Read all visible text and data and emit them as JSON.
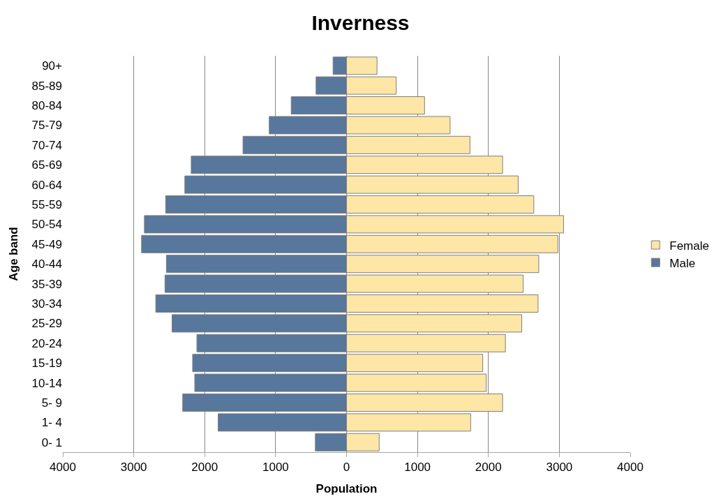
{
  "chart_data": {
    "type": "bar",
    "orientation": "horizontal",
    "title": "Inverness",
    "xlabel": "Population",
    "ylabel": "Age band",
    "categories": [
      "90+",
      "85-89",
      "80-84",
      "75-79",
      "70-74",
      "65-69",
      "60-64",
      "55-59",
      "50-54",
      "45-49",
      "40-44",
      "35-39",
      "30-34",
      "25-29",
      "20-24",
      "15-19",
      "10-14",
      "5- 9",
      "1- 4",
      "0- 1"
    ],
    "series": [
      {
        "name": "Female",
        "color": "#fde6a6",
        "values": [
          430,
          700,
          1100,
          1460,
          1740,
          2200,
          2420,
          2640,
          3060,
          2980,
          2710,
          2490,
          2700,
          2470,
          2240,
          1920,
          1970,
          2200,
          1750,
          460
        ]
      },
      {
        "name": "Male",
        "color": "#57779d",
        "values": [
          -190,
          -430,
          -780,
          -1090,
          -1460,
          -2190,
          -2280,
          -2550,
          -2850,
          -2890,
          -2540,
          -2560,
          -2690,
          -2460,
          -2110,
          -2170,
          -2140,
          -2310,
          -1810,
          -440
        ]
      }
    ],
    "xlim": [
      -4000,
      4000
    ],
    "xticks": [
      {
        "value": -4000,
        "label": "4000"
      },
      {
        "value": -3000,
        "label": "3000"
      },
      {
        "value": -2000,
        "label": "2000"
      },
      {
        "value": -1000,
        "label": "1000"
      },
      0,
      1000,
      2000,
      3000,
      4000
    ],
    "grid": "x",
    "legend": "right",
    "stacked": true
  }
}
